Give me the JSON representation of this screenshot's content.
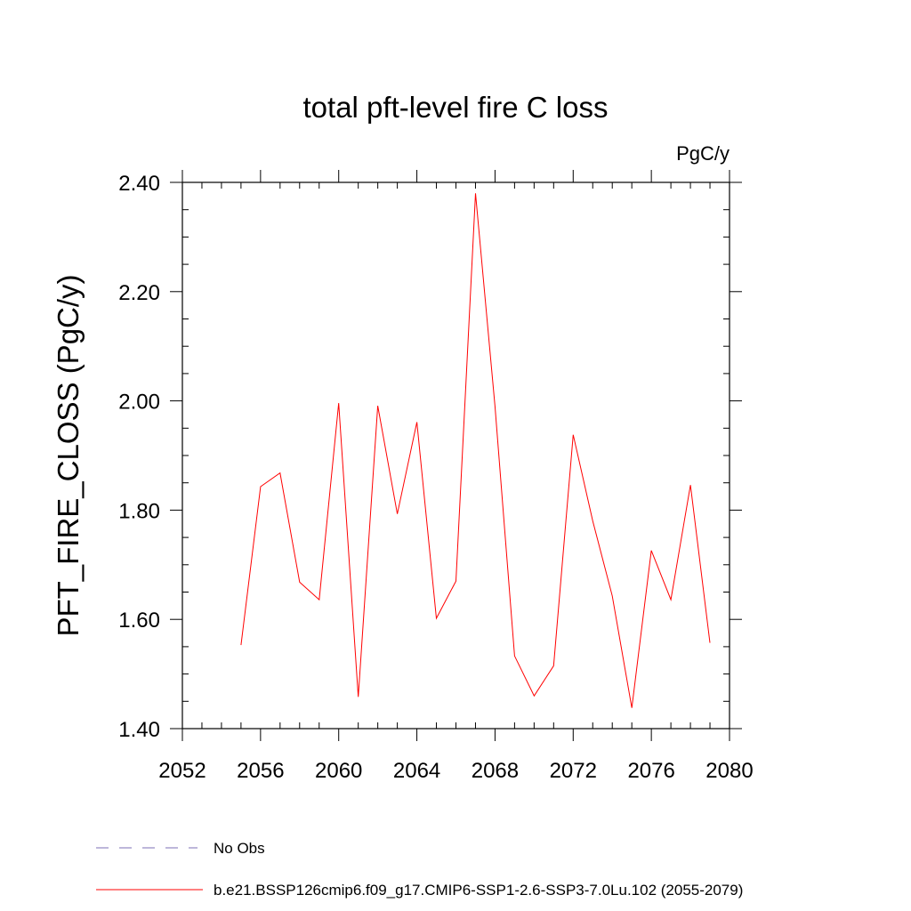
{
  "chart_data": {
    "type": "line",
    "title": "total pft-level fire C loss",
    "units_label": "PgC/y",
    "ylabel": "PFT_FIRE_CLOSS  (PgC/y)",
    "xlabel": "",
    "xlim": [
      2052,
      2080
    ],
    "ylim": [
      1.4,
      2.4
    ],
    "x_ticks": [
      2052,
      2056,
      2060,
      2064,
      2068,
      2072,
      2076,
      2080
    ],
    "x_tick_labels": [
      "2052",
      "2056",
      "2060",
      "2064",
      "2068",
      "2072",
      "2076",
      "2080"
    ],
    "x_minor_step": 1,
    "y_ticks": [
      1.4,
      1.6,
      1.8,
      2.0,
      2.2,
      2.4
    ],
    "y_tick_labels": [
      "1.40",
      "1.60",
      "1.80",
      "2.00",
      "2.20",
      "2.40"
    ],
    "y_minor_step": 0.05,
    "grid": false,
    "legend_position": "bottom",
    "series": [
      {
        "name": "b.e21.BSSP126cmip6.f09_g17.CMIP6-SSP1-2.6-SSP3-7.0Lu.102 (2055-2079)",
        "color": "#ff0000",
        "style": "solid",
        "x": [
          2055,
          2056,
          2057,
          2058,
          2059,
          2060,
          2061,
          2062,
          2063,
          2064,
          2065,
          2066,
          2067,
          2068,
          2069,
          2070,
          2071,
          2072,
          2073,
          2074,
          2075,
          2076,
          2077,
          2078,
          2079
        ],
        "values": [
          1.553,
          1.843,
          1.868,
          1.668,
          1.636,
          1.996,
          1.458,
          1.991,
          1.793,
          1.961,
          1.602,
          1.67,
          2.38,
          1.99,
          1.533,
          1.46,
          1.515,
          1.938,
          1.78,
          1.643,
          1.438,
          1.726,
          1.636,
          1.846,
          1.557
        ]
      }
    ],
    "legend": [
      {
        "label": "No Obs",
        "color": "#7b6fb5",
        "style": "dashed"
      },
      {
        "label": "b.e21.BSSP126cmip6.f09_g17.CMIP6-SSP1-2.6-SSP3-7.0Lu.102 (2055-2079)",
        "color": "#ff0000",
        "style": "solid"
      }
    ]
  }
}
